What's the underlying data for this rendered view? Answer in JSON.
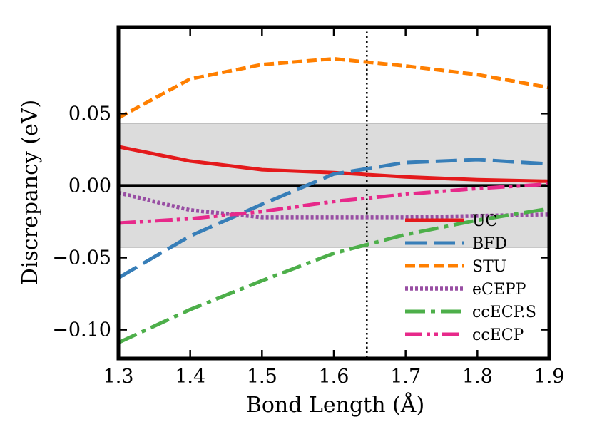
{
  "chart_data": {
    "type": "line",
    "title": "",
    "xlabel": "Bond Length (Å)",
    "ylabel": "Discrepancy (eV)",
    "xlim": [
      1.3,
      1.9
    ],
    "ylim": [
      -0.12,
      0.11
    ],
    "x_ticks": [
      1.3,
      1.4,
      1.5,
      1.6,
      1.7,
      1.8,
      1.9
    ],
    "x_tick_labels": [
      "1.3",
      "1.4",
      "1.5",
      "1.6",
      "1.7",
      "1.8",
      "1.9"
    ],
    "y_ticks": [
      0.05,
      0.0,
      -0.05,
      -0.1
    ],
    "y_tick_labels": [
      "0.05",
      "0.00",
      "−0.05",
      "−0.10"
    ],
    "grid": false,
    "band": {
      "y_from": -0.043,
      "y_to": 0.043,
      "color": "#dcdcdc"
    },
    "hline": {
      "y": 0.0,
      "color": "#000000"
    },
    "vline": {
      "x": 1.646,
      "color": "#000000",
      "style": "dotted"
    },
    "legend_position": "lower-right",
    "x": [
      1.3,
      1.4,
      1.5,
      1.6,
      1.7,
      1.8,
      1.9
    ],
    "series": [
      {
        "name": "UC",
        "color": "#e41a1c",
        "dash": "solid",
        "values": [
          0.027,
          0.017,
          0.011,
          0.009,
          0.006,
          0.004,
          0.003
        ]
      },
      {
        "name": "BFD",
        "color": "#377eb8",
        "dash": "long",
        "values": [
          -0.064,
          -0.035,
          -0.013,
          0.008,
          0.016,
          0.018,
          0.015
        ]
      },
      {
        "name": "STU",
        "color": "#ff7f00",
        "dash": "dashed",
        "values": [
          0.047,
          0.074,
          0.084,
          0.088,
          0.083,
          0.077,
          0.068
        ]
      },
      {
        "name": "eCEPP",
        "color": "#984ea3",
        "dash": "dotted",
        "values": [
          -0.005,
          -0.017,
          -0.022,
          -0.022,
          -0.022,
          -0.021,
          -0.02
        ]
      },
      {
        "name": "ccECP.S",
        "color": "#4daf4a",
        "dash": "dashdot",
        "values": [
          -0.109,
          -0.086,
          -0.066,
          -0.047,
          -0.034,
          -0.024,
          -0.016
        ]
      },
      {
        "name": "ccECP",
        "color": "#e7298a",
        "dash": "dashdotdot",
        "values": [
          -0.026,
          -0.023,
          -0.018,
          -0.011,
          -0.006,
          -0.002,
          0.001
        ]
      }
    ]
  }
}
